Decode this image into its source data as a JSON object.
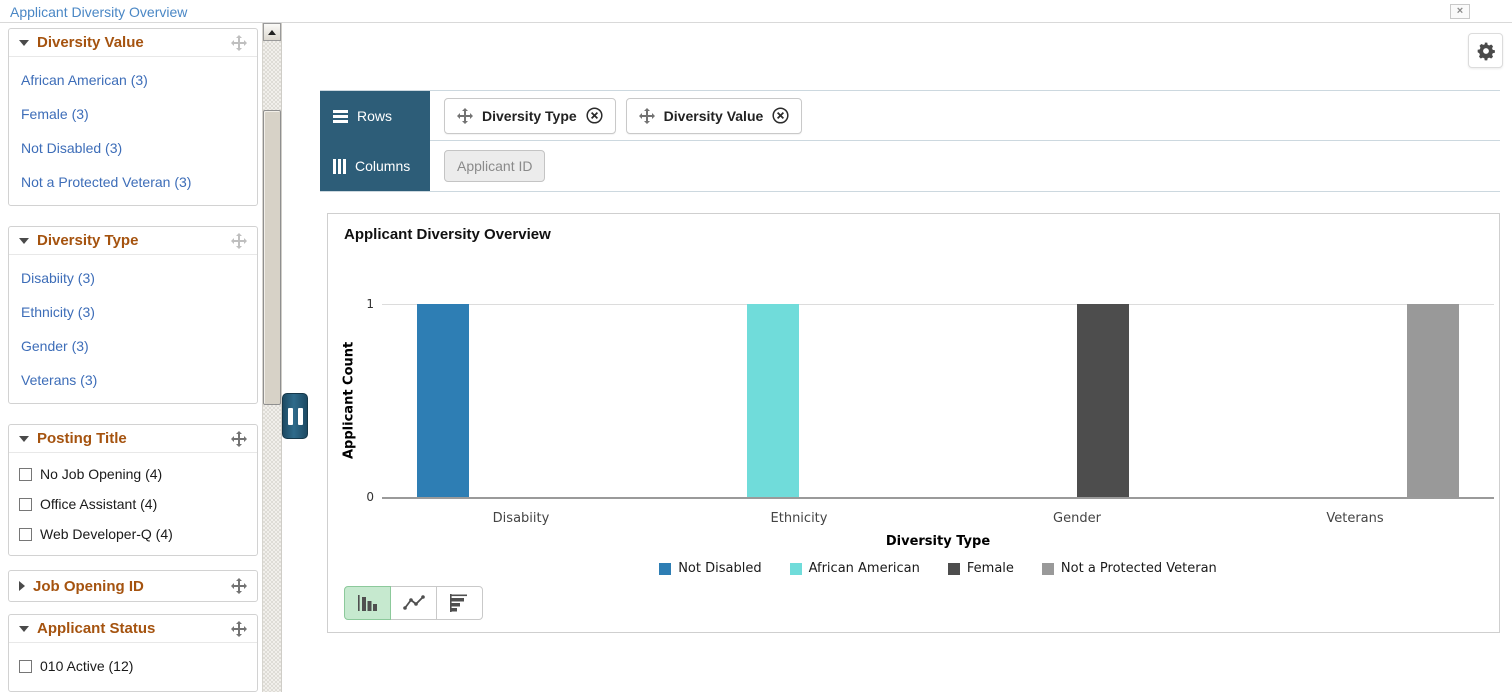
{
  "page": {
    "title": "Applicant Diversity Overview"
  },
  "icons": {
    "close": "×"
  },
  "sidebar": {
    "facets": [
      {
        "title": "Diversity Value",
        "state": "expanded",
        "items": [
          {
            "label": "African American (3)"
          },
          {
            "label": "Female (3)"
          },
          {
            "label": "Not Disabled (3)"
          },
          {
            "label": "Not a Protected Veteran (3)"
          }
        ]
      },
      {
        "title": "Diversity Type",
        "state": "expanded",
        "items": [
          {
            "label": "Disabiity (3)"
          },
          {
            "label": "Ethnicity (3)"
          },
          {
            "label": "Gender (3)"
          },
          {
            "label": "Veterans (3)"
          }
        ]
      },
      {
        "title": "Posting Title",
        "state": "expanded",
        "items": [
          {
            "label": "No Job Opening (4)",
            "checked": false
          },
          {
            "label": "Office Assistant (4)",
            "checked": false
          },
          {
            "label": "Web Developer-Q (4)",
            "checked": false
          }
        ]
      },
      {
        "title": "Job Opening ID",
        "state": "collapsed",
        "items": []
      },
      {
        "title": "Applicant Status",
        "state": "expanded",
        "items": [
          {
            "label": "010 Active (12)",
            "checked": false
          }
        ]
      }
    ]
  },
  "pivot": {
    "rows_label": "Rows",
    "columns_label": "Columns",
    "row_chips": [
      {
        "label": "Diversity Type"
      },
      {
        "label": "Diversity Value"
      }
    ],
    "column_chips": [
      {
        "label": "Applicant ID",
        "disabled": true
      }
    ]
  },
  "chart_data": {
    "type": "bar",
    "title": "Applicant Diversity Overview",
    "xlabel": "Diversity Type",
    "ylabel": "Applicant Count",
    "categories": [
      "Disabiity",
      "Ethnicity",
      "Gender",
      "Veterans"
    ],
    "series": [
      {
        "name": "Not Disabled",
        "color": "#2e7eb4",
        "values": [
          1,
          0,
          0,
          0
        ]
      },
      {
        "name": "African American",
        "color": "#70dcda",
        "values": [
          0,
          1,
          0,
          0
        ]
      },
      {
        "name": "Female",
        "color": "#4d4d4d",
        "values": [
          0,
          0,
          1,
          0
        ]
      },
      {
        "name": "Not a Protected Veteran",
        "color": "#999999",
        "values": [
          0,
          0,
          0,
          1
        ]
      }
    ],
    "ylim": [
      0,
      1
    ],
    "yticks": [
      0,
      1
    ],
    "grid": true,
    "legend_position": "bottom"
  },
  "chart_controls": {
    "types": [
      "vertical-bar",
      "line",
      "horizontal-bar"
    ],
    "active": "vertical-bar"
  },
  "colors": {
    "page_title": "#4a87c5",
    "facet_header": "#a5530f",
    "link": "#3d6db8",
    "pivot_panel": "#2d5d78",
    "active_chart_button_bg": "#c6e9cf",
    "active_chart_button_border": "#8cc99b",
    "grip": "#235a77"
  }
}
